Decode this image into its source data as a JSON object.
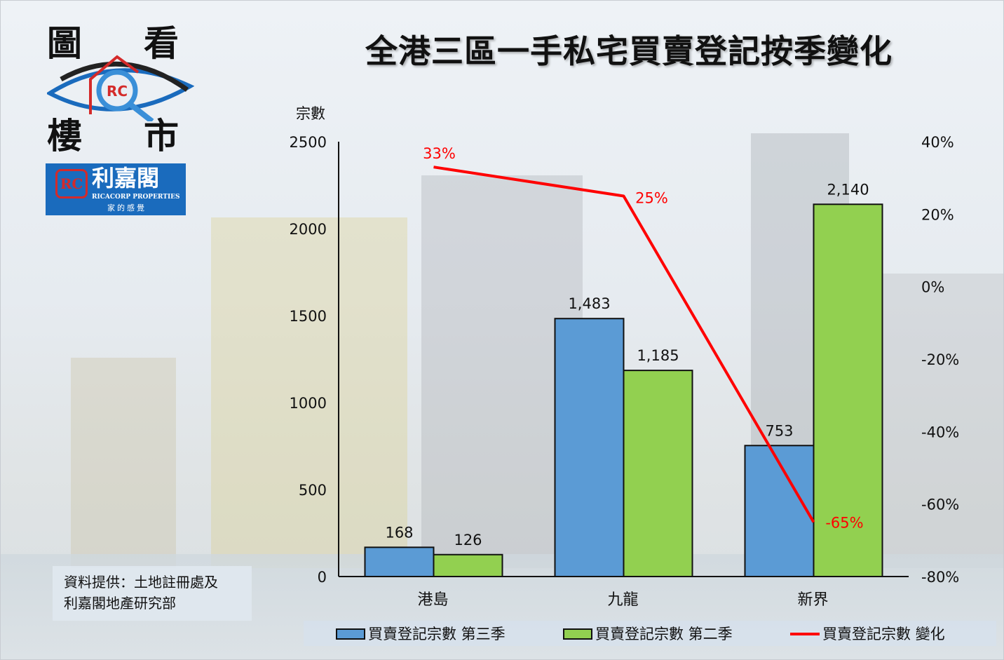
{
  "logo": {
    "chars": [
      "圖",
      "看",
      "樓",
      "市"
    ],
    "brand_mark": "RC",
    "brand_name": "利嘉閣",
    "brand_en": "RICACORP PROPERTIES",
    "brand_tagline": "家的感覺"
  },
  "source": {
    "line1": "資料提供：土地註冊處及",
    "line2": "利嘉閣地產研究部"
  },
  "chart_data": {
    "type": "bar",
    "title": "全港三區一手私宅買賣登記按季變化",
    "ylabel": "宗數",
    "ylim": [
      0,
      2500
    ],
    "yticks": [
      "0",
      "500",
      "1000",
      "1500",
      "2000",
      "2500"
    ],
    "ytick_values": [
      0,
      500,
      1000,
      1500,
      2000,
      2500
    ],
    "y2lim": [
      -80,
      40
    ],
    "y2ticks": [
      "-80%",
      "-60%",
      "-40%",
      "-20%",
      "0%",
      "20%",
      "40%"
    ],
    "y2tick_values": [
      -80,
      -60,
      -40,
      -20,
      0,
      20,
      40
    ],
    "categories": [
      "港島",
      "九龍",
      "新界"
    ],
    "series": [
      {
        "name": "買賣登記宗數 第三季",
        "type": "bar",
        "color": "#5b9bd5",
        "values": [
          168,
          1483,
          753
        ],
        "labels": [
          "168",
          "1,483",
          "753"
        ]
      },
      {
        "name": "買賣登記宗數 第二季",
        "type": "bar",
        "color": "#92d050",
        "values": [
          126,
          1185,
          2140
        ],
        "labels": [
          "126",
          "1,185",
          "2,140"
        ]
      },
      {
        "name": "買賣登記宗數 變化",
        "type": "line",
        "axis": "right",
        "color": "#ff0000",
        "values": [
          33,
          25,
          -65
        ],
        "labels": [
          "33%",
          "25%",
          "-65%"
        ]
      }
    ],
    "legend": "bottom"
  }
}
